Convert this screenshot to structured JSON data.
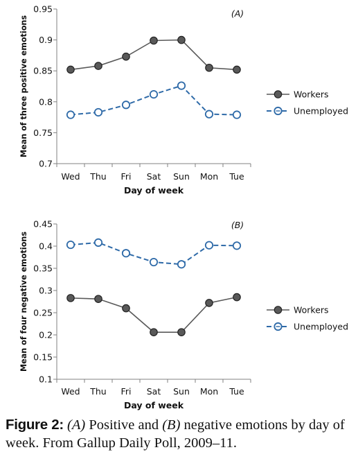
{
  "colors": {
    "workers_marker": "#595959",
    "workers_line": "#595959",
    "unemployed": "#2e6aa8",
    "axis": "#808080"
  },
  "legend": {
    "workers": "Workers",
    "unemployed": "Unemployed"
  },
  "caption": {
    "label": "Figure 2:",
    "part_a": "(A)",
    "text1": " Positive and ",
    "part_b": "(B)",
    "text2": " negative emotions by day of week. From Gallup Daily Poll, 2009–11."
  },
  "chart_data": [
    {
      "type": "line",
      "panel": "(A)",
      "xlabel": "Day of week",
      "ylabel": "Mean of three positive emotions",
      "categories": [
        "Wed",
        "Thu",
        "Fri",
        "Sat",
        "Sun",
        "Mon",
        "Tue"
      ],
      "ylim": [
        0.7,
        0.95
      ],
      "yticks": [
        "0.7",
        "0.75",
        "0.8",
        "0.85",
        "0.9",
        "0.95"
      ],
      "grid": false,
      "legend_position": "right",
      "series": [
        {
          "name": "Workers",
          "style": "solid",
          "values": [
            0.852,
            0.858,
            0.873,
            0.899,
            0.9,
            0.855,
            0.852
          ]
        },
        {
          "name": "Unemployed",
          "style": "dashed",
          "values": [
            0.779,
            0.783,
            0.795,
            0.812,
            0.826,
            0.78,
            0.779
          ]
        }
      ]
    },
    {
      "type": "line",
      "panel": "(B)",
      "xlabel": "Day of week",
      "ylabel": "Mean of four negative emotions",
      "categories": [
        "Wed",
        "Thu",
        "Fri",
        "Sat",
        "Sun",
        "Mon",
        "Tue"
      ],
      "ylim": [
        0.1,
        0.45
      ],
      "yticks": [
        "0.1",
        "0.15",
        "0.2",
        "0.25",
        "0.3",
        "0.35",
        "0.4",
        "0.45"
      ],
      "grid": false,
      "legend_position": "right",
      "series": [
        {
          "name": "Workers",
          "style": "solid",
          "values": [
            0.283,
            0.281,
            0.26,
            0.206,
            0.206,
            0.272,
            0.285
          ]
        },
        {
          "name": "Unemployed",
          "style": "dashed",
          "values": [
            0.403,
            0.408,
            0.384,
            0.364,
            0.359,
            0.402,
            0.401
          ]
        }
      ]
    }
  ]
}
